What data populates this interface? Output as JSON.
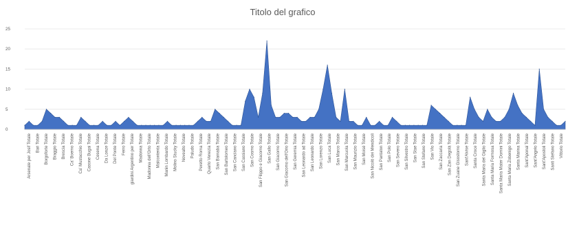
{
  "chart_data": {
    "type": "area",
    "title": "Titolo del grafico",
    "xlabel": "",
    "ylabel": "",
    "ylim": [
      0,
      25
    ],
    "yticks": [
      0,
      5,
      10,
      15,
      20,
      25
    ],
    "grid": true,
    "legend": "none",
    "colors": {
      "fill": "#4472c4",
      "stroke": "#2f5597",
      "grid": "#e6e6e6",
      "text": "#595959"
    },
    "categories": [
      "Arsenale per Josif Totale",
      "Bari Totale",
      "Borgoforte Totale",
      "Braggio Totale",
      "Brescia Totale",
      "Ca' Boemo Totale",
      "Ca' Mustacchio Totale",
      "Casone Bugai Totale",
      "Cesena Totale",
      "Da Lonze Totale",
      "Del Ponte Totale",
      "Ferro Totale",
      "giardini Argentino per Totale",
      "Madonna Totale",
      "Madonna dell'Orto Totale",
      "Malcontenta Totale",
      "Manin Lombardo Totale",
      "Molino Stucky Totale",
      "Novealto Totale",
      "Paludo Totale",
      "Peretto Roma Totale",
      "Quarto Venezia Totale",
      "San Barnaba Totale",
      "San Bartolomeo Totale",
      "San Canciano Totale",
      "San Cassiano Totale",
      "San Cosmo Totale",
      "San Filippo e Giacomo Totale",
      "San Gallo Totale",
      "San Giacomo Totale",
      "San Giacomo dell'Orio Totale",
      "San Geremia Totale",
      "San Leonardo ad Totale",
      "San Leonardo Totale",
      "San Lorenzo Totale",
      "San Luca Totale",
      "San Marco Totale",
      "San Marcuola Totale",
      "San Maurizio Totale",
      "San Moisè Totale",
      "San Nicolò dei Mendicoli",
      "San Pantalon Totale",
      "San Polo Totale",
      "San Severo Totale",
      "San Silvestro Totale",
      "San Stae Totale",
      "San Stefano Totale",
      "San Vio Totale",
      "San Zaccaria Totale",
      "San Zan Degolà Totale",
      "San Zuane Gisostomo Totale",
      "Sant'Alvise Totale",
      "Santa Croce Totale",
      "Santa Maria del Giglio Totale",
      "Santa Maria Formosa Totale",
      "Santa Maria Mater Domini Totale",
      "Santa Maria Zobenigo Totale",
      "Santa Marina Totale",
      "Sant'Aponal Totale",
      "Sant'Angelo Totale",
      "Sant'Apostoli Totale",
      "Santi Stefano Totale",
      "Vittorio Totale"
    ],
    "x": [
      0,
      1,
      2,
      3,
      4,
      5,
      6,
      7,
      8,
      9,
      10,
      11,
      12,
      13,
      14,
      15,
      16,
      17,
      18,
      19,
      20,
      21,
      22,
      23,
      24,
      25,
      26,
      27,
      28,
      29,
      30,
      31,
      32,
      33,
      34,
      35,
      36,
      37,
      38,
      39,
      40,
      41,
      42,
      43,
      44,
      45,
      46,
      47,
      48,
      49,
      50,
      51,
      52,
      53,
      54,
      55,
      56,
      57,
      58,
      59,
      60,
      61,
      62,
      63,
      64,
      65,
      66,
      67,
      68,
      69,
      70,
      71,
      72,
      73,
      74,
      75,
      76,
      77,
      78,
      79,
      80,
      81,
      82,
      83,
      84,
      85,
      86,
      87,
      88,
      89,
      90,
      91,
      92,
      93,
      94,
      95,
      96,
      97,
      98,
      99,
      100,
      101,
      102,
      103,
      104,
      105,
      106,
      107,
      108,
      109,
      110,
      111,
      112,
      113,
      114,
      115,
      116,
      117,
      118,
      119,
      120,
      121,
      122,
      123,
      124,
      125
    ],
    "values": [
      1,
      2,
      1,
      1,
      2,
      5,
      4,
      3,
      3,
      2,
      1,
      1,
      1,
      3,
      2,
      1,
      1,
      1,
      2,
      1,
      1,
      2,
      1,
      2,
      3,
      2,
      1,
      1,
      1,
      1,
      1,
      1,
      1,
      2,
      1,
      1,
      1,
      1,
      1,
      1,
      2,
      3,
      2,
      2,
      5,
      4,
      3,
      2,
      1,
      1,
      1,
      7,
      10,
      8,
      3,
      9,
      22,
      6,
      3,
      3,
      4,
      4,
      3,
      3,
      2,
      2,
      3,
      3,
      5,
      10,
      16,
      9,
      3,
      2,
      10,
      2,
      2,
      1,
      1,
      3,
      1,
      1,
      2,
      1,
      1,
      3,
      2,
      1,
      1,
      1,
      1,
      1,
      1,
      1,
      6,
      5,
      4,
      3,
      2,
      1,
      1,
      1,
      1,
      8,
      5,
      3,
      2,
      5,
      3,
      2,
      2,
      3,
      5,
      9,
      6,
      4,
      3,
      2,
      1,
      15,
      5,
      3,
      2,
      1,
      1,
      2
    ]
  }
}
